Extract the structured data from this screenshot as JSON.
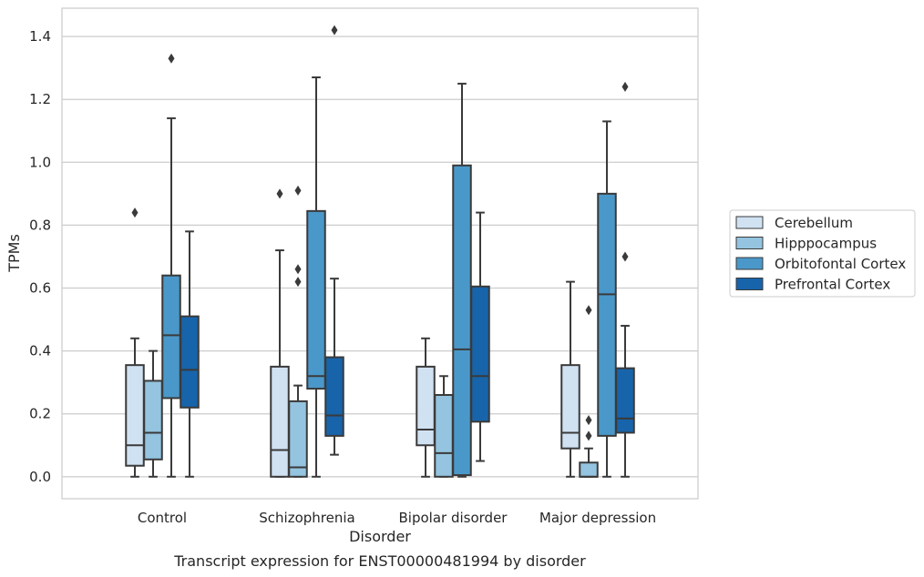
{
  "caption": "Transcript expression for ENST00000481994 by disorder",
  "chart_data": {
    "type": "box",
    "xlabel": "Disorder",
    "ylabel": "TPMs",
    "ylim": [
      -0.07,
      1.49
    ],
    "yticks": [
      "0.0",
      "0.2",
      "0.4",
      "0.6",
      "0.8",
      "1.0",
      "1.2",
      "1.4"
    ],
    "grid": "horizontal",
    "legend_position": "right",
    "categories": [
      "Control",
      "Schizophrenia",
      "Bipolar disorder",
      "Major depression"
    ],
    "series": [
      {
        "name": "Cerebellum",
        "color": "#d0e1f2",
        "boxes": [
          {
            "whislo": 0.0,
            "q1": 0.035,
            "med": 0.1,
            "q3": 0.355,
            "whishi": 0.44,
            "fliers": [
              0.84
            ]
          },
          {
            "whislo": 0.0,
            "q1": 0.0,
            "med": 0.085,
            "q3": 0.35,
            "whishi": 0.72,
            "fliers": [
              0.9
            ]
          },
          {
            "whislo": 0.0,
            "q1": 0.1,
            "med": 0.15,
            "q3": 0.35,
            "whishi": 0.44,
            "fliers": []
          },
          {
            "whislo": 0.0,
            "q1": 0.09,
            "med": 0.14,
            "q3": 0.355,
            "whishi": 0.62,
            "fliers": []
          }
        ]
      },
      {
        "name": "Hipppocampus",
        "color": "#94c4df",
        "boxes": [
          {
            "whislo": 0.0,
            "q1": 0.055,
            "med": 0.14,
            "q3": 0.305,
            "whishi": 0.4,
            "fliers": []
          },
          {
            "whislo": 0.0,
            "q1": 0.0,
            "med": 0.03,
            "q3": 0.24,
            "whishi": 0.29,
            "fliers": [
              0.91,
              0.66,
              0.62
            ]
          },
          {
            "whislo": 0.0,
            "q1": 0.0,
            "med": 0.075,
            "q3": 0.26,
            "whishi": 0.32,
            "fliers": []
          },
          {
            "whislo": 0.0,
            "q1": 0.0,
            "med": 0.0,
            "q3": 0.045,
            "whishi": 0.09,
            "fliers": [
              0.53,
              0.18,
              0.13
            ]
          }
        ]
      },
      {
        "name": "Orbitofontal Cortex",
        "color": "#4a98c9",
        "boxes": [
          {
            "whislo": 0.0,
            "q1": 0.25,
            "med": 0.45,
            "q3": 0.64,
            "whishi": 1.14,
            "fliers": [
              1.33
            ]
          },
          {
            "whislo": 0.0,
            "q1": 0.28,
            "med": 0.32,
            "q3": 0.845,
            "whishi": 1.27,
            "fliers": []
          },
          {
            "whislo": 0.0,
            "q1": 0.005,
            "med": 0.405,
            "q3": 0.99,
            "whishi": 1.25,
            "fliers": []
          },
          {
            "whislo": 0.0,
            "q1": 0.13,
            "med": 0.58,
            "q3": 0.9,
            "whishi": 1.13,
            "fliers": []
          }
        ]
      },
      {
        "name": "Prefrontal Cortex",
        "color": "#1764ab",
        "boxes": [
          {
            "whislo": 0.0,
            "q1": 0.22,
            "med": 0.34,
            "q3": 0.51,
            "whishi": 0.78,
            "fliers": []
          },
          {
            "whislo": 0.07,
            "q1": 0.13,
            "med": 0.195,
            "q3": 0.38,
            "whishi": 0.63,
            "fliers": [
              1.42
            ]
          },
          {
            "whislo": 0.05,
            "q1": 0.175,
            "med": 0.32,
            "q3": 0.605,
            "whishi": 0.84,
            "fliers": []
          },
          {
            "whislo": 0.0,
            "q1": 0.14,
            "med": 0.185,
            "q3": 0.345,
            "whishi": 0.48,
            "fliers": [
              1.24,
              0.7
            ]
          }
        ]
      }
    ]
  }
}
